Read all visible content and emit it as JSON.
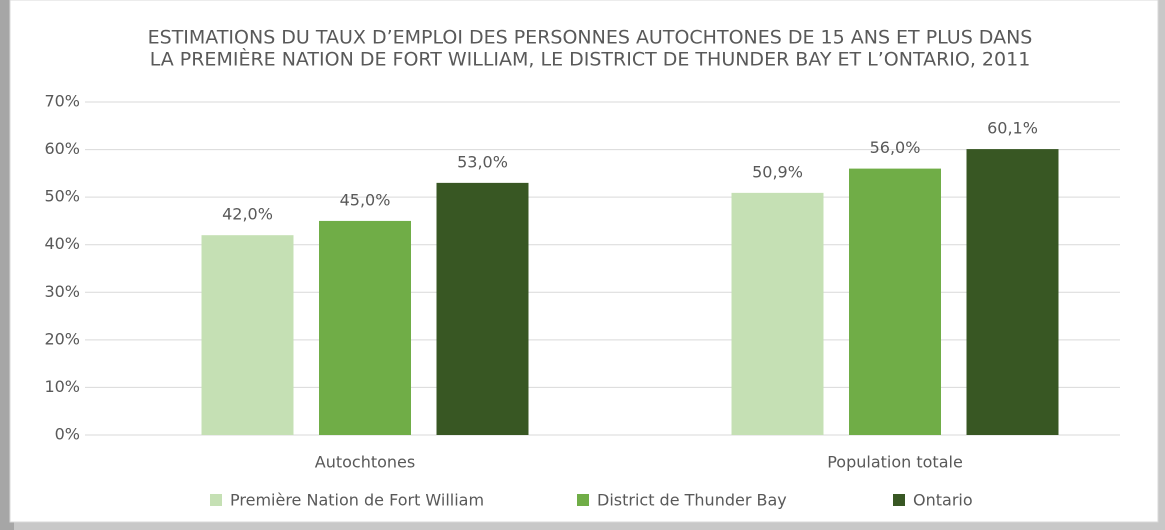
{
  "chart_data": {
    "type": "bar",
    "title": [
      "ESTIMATIONS DU TAUX D’EMPLOI DES PERSONNES AUTOCHTONES DE 15 ANS ET PLUS DANS",
      "LA PREMIÈRE NATION DE FORT WILLIAM, LE DISTRICT DE THUNDER BAY ET L’ONTARIO, 2011"
    ],
    "categories": [
      "Autochtones",
      "Population totale"
    ],
    "series": [
      {
        "name": "Première Nation de Fort William",
        "color": "#c5e0b4",
        "values": [
          42.0,
          50.9
        ],
        "value_labels": [
          "42,0%",
          "50,9%"
        ]
      },
      {
        "name": "District de Thunder Bay",
        "color": "#70ad47",
        "values": [
          45.0,
          56.0
        ],
        "value_labels": [
          "45,0%",
          "56,0%"
        ]
      },
      {
        "name": "Ontario",
        "color": "#385723",
        "values": [
          53.0,
          60.1
        ],
        "value_labels": [
          "53,0%",
          "60,1%"
        ]
      }
    ],
    "ylim": [
      0,
      70
    ],
    "yticks": [
      {
        "value": 0,
        "label": "0%"
      },
      {
        "value": 10,
        "label": "10%"
      },
      {
        "value": 20,
        "label": "20%"
      },
      {
        "value": 30,
        "label": "30%"
      },
      {
        "value": 40,
        "label": "40%"
      },
      {
        "value": 50,
        "label": "50%"
      },
      {
        "value": 60,
        "label": "60%"
      },
      {
        "value": 70,
        "label": "70%"
      }
    ],
    "grid": true,
    "legend": "bottom"
  }
}
